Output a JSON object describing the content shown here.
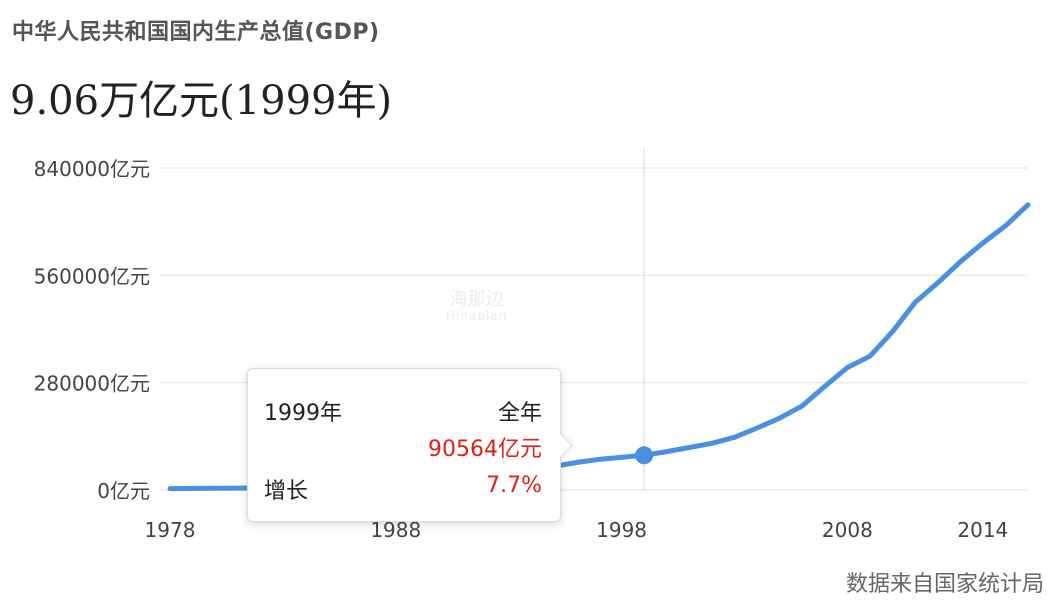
{
  "header": {
    "title": "中华人民共和国国内生产总值(GDP)",
    "headline": "9.06万亿元(1999年)"
  },
  "tooltip": {
    "year": "1999年",
    "period": "全年",
    "value": "90564亿元",
    "growth_label": "增长",
    "growth_value": "7.7%"
  },
  "watermark": {
    "name": "海那边",
    "sub": "Hinabian"
  },
  "source": "数据来自国家统计局",
  "colors": {
    "line": "#4a90e2",
    "tooltip_value": "#e0201a",
    "grid": "#ececec"
  },
  "chart_data": {
    "type": "line",
    "title": "中华人民共和国国内生产总值(GDP)",
    "xlabel": "",
    "ylabel": "",
    "xlim": [
      1978,
      2016
    ],
    "ylim": [
      0,
      840000
    ],
    "y_unit": "亿元",
    "x_ticks": [
      "1978",
      "1988",
      "1998",
      "2008",
      "2014"
    ],
    "y_ticks": [
      "0亿元",
      "280000亿元",
      "560000亿元",
      "840000亿元"
    ],
    "grid": true,
    "highlight": {
      "x": 1999,
      "y": 90564
    },
    "series": [
      {
        "name": "",
        "x": [
          1978,
          1979,
          1980,
          1981,
          1982,
          1983,
          1984,
          1985,
          1986,
          1987,
          1988,
          1989,
          1990,
          1991,
          1992,
          1993,
          1994,
          1995,
          1996,
          1997,
          1998,
          1999,
          2000,
          2001,
          2002,
          2003,
          2004,
          2005,
          2006,
          2007,
          2008,
          2009,
          2010,
          2011,
          2012,
          2013,
          2014,
          2015,
          2016
        ],
        "y": [
          3679,
          4101,
          4588,
          4936,
          5373,
          6021,
          7279,
          9099,
          10376,
          12175,
          15180,
          17180,
          18873,
          22006,
          27195,
          35673,
          48638,
          61340,
          71814,
          79715,
          85196,
          90564,
          100280,
          110863,
          121717,
          137422,
          161840,
          187319,
          219439,
          270232,
          319516,
          349081,
          413030,
          489301,
          540367,
          595244,
          643974,
          689052,
          744127
        ]
      }
    ]
  }
}
